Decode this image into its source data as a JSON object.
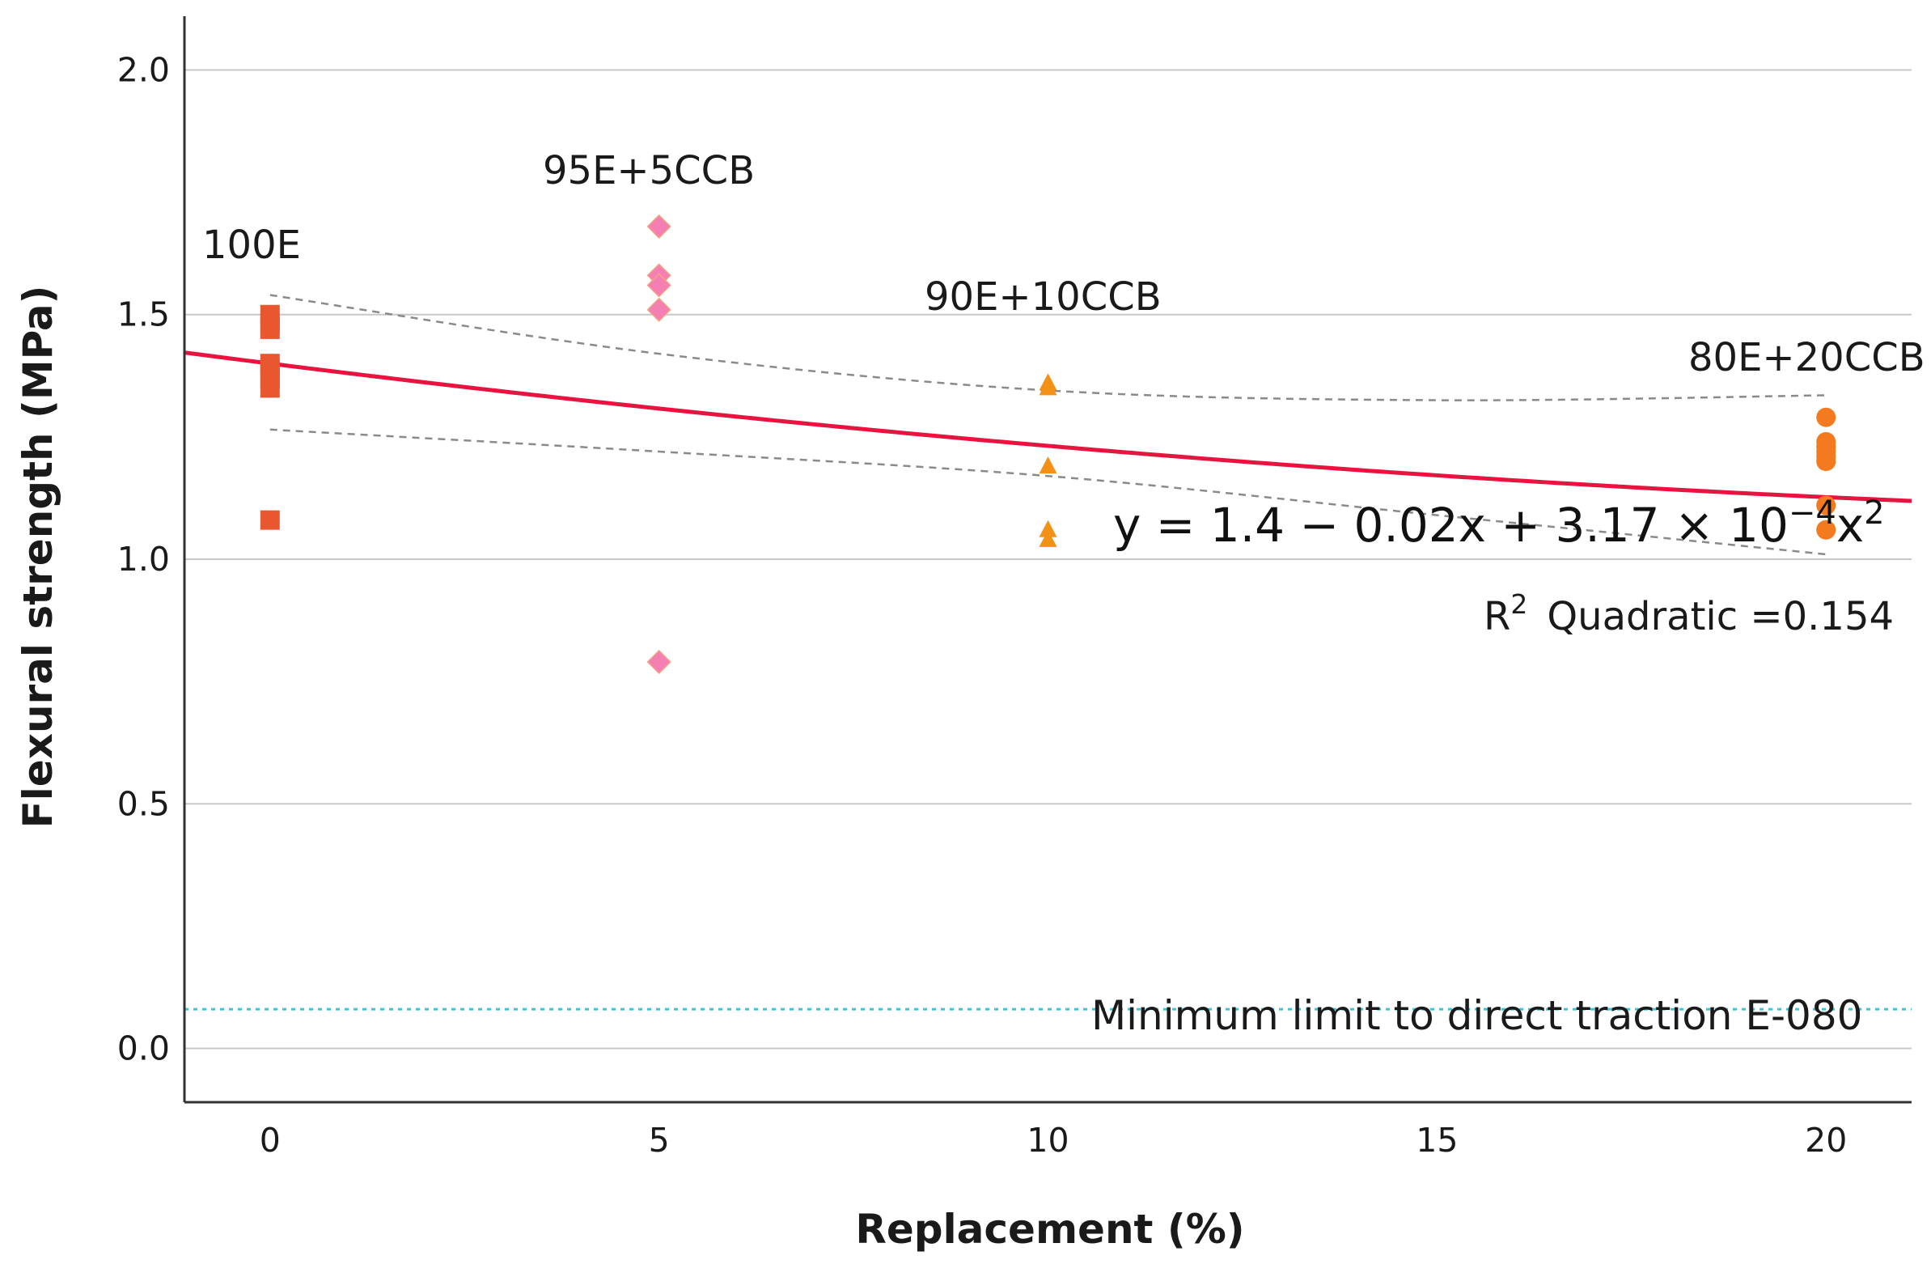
{
  "chart_data": {
    "type": "scatter",
    "xlabel": "Replacement (%)",
    "ylabel": "Flexural strength (MPa)",
    "xlim": [
      -1.1,
      21.1
    ],
    "ylim": [
      -0.11,
      2.11
    ],
    "x_ticks": [
      0,
      5,
      10,
      15,
      20
    ],
    "y_ticks": [
      0.0,
      0.5,
      1.0,
      1.5,
      2.0
    ],
    "x_tick_labels": [
      "0",
      "5",
      "10",
      "15",
      "20"
    ],
    "y_tick_labels": [
      "0.0",
      "0.5",
      "1.0",
      "1.5",
      "2.0"
    ],
    "grid": "horizontal",
    "series": [
      {
        "name": "100E",
        "label": "100E",
        "marker": "square",
        "color": "#e8572f",
        "x": 0,
        "values": [
          1.5,
          1.48,
          1.47,
          1.4,
          1.39,
          1.37,
          1.35,
          1.08
        ]
      },
      {
        "name": "95E+5CCB",
        "label": "95E+5CCB",
        "marker": "diamond",
        "color": "#f47fb3",
        "x": 5,
        "values": [
          1.68,
          1.58,
          1.56,
          1.51,
          0.79
        ]
      },
      {
        "name": "90E+10CCB",
        "label": "90E+10CCB",
        "marker": "triangle",
        "color": "#f39117",
        "x": 10,
        "values": [
          1.36,
          1.35,
          1.19,
          1.06,
          1.04
        ]
      },
      {
        "name": "80E+20CCB",
        "label": "80E+20CCB",
        "marker": "circle",
        "color": "#f47a20",
        "x": 20,
        "values": [
          1.29,
          1.24,
          1.23,
          1.22,
          1.21,
          1.2,
          1.11,
          1.06
        ]
      }
    ],
    "fit": {
      "type": "quadratic",
      "coefficients": [
        1.4,
        -0.02,
        0.000317
      ],
      "color": "#e8133f",
      "equation": "y = 1.4 − 0.02x + 3.17 × 10",
      "equation_exp": "−4",
      "equation_tail": "x",
      "equation_tail_exp": "2",
      "r2_symbol": "R",
      "r2_exp": "2",
      "r2_text": "Quadratic =0.154",
      "ci_upper": [
        [
          0,
          1.54
        ],
        [
          5,
          1.42
        ],
        [
          10,
          1.345
        ],
        [
          15,
          1.325
        ],
        [
          20,
          1.335
        ]
      ],
      "ci_lower": [
        [
          0,
          1.265
        ],
        [
          5,
          1.22
        ],
        [
          10,
          1.17
        ],
        [
          15,
          1.09
        ],
        [
          20,
          1.01
        ]
      ]
    },
    "reference_line": {
      "value": 0.08,
      "label": "Minimum limit to direct traction E-080",
      "color": "#35c9d8"
    }
  }
}
